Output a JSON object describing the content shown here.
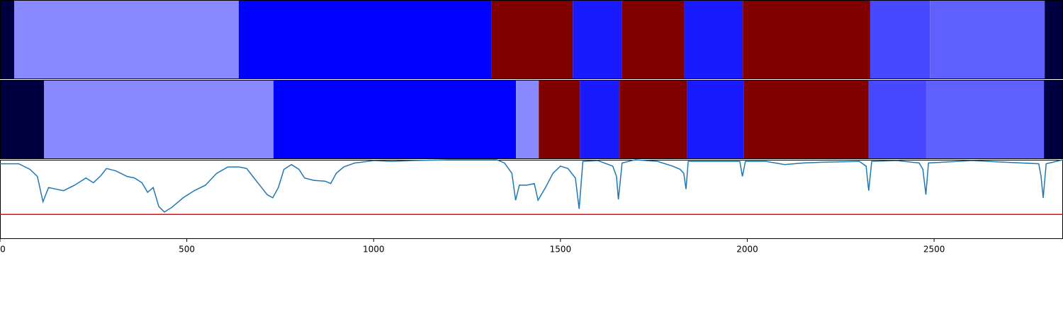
{
  "chart_data": [
    {
      "type": "segments",
      "edges": [
        0,
        38,
        639,
        1316,
        1533,
        1664,
        1832,
        1988,
        2329,
        2489,
        2796,
        2845
      ],
      "colors": [
        "#000040",
        "#8888ff",
        "#0000ff",
        "#800000",
        "#1a1aff",
        "#800000",
        "#1a1aff",
        "#800000",
        "#4848ff",
        "#6060ff",
        "#000040"
      ]
    },
    {
      "type": "segments",
      "edges": [
        0,
        118,
        732,
        1381,
        1442,
        1552,
        1658,
        1838,
        1990,
        2325,
        2479,
        2794,
        2845
      ],
      "colors": [
        "#000040",
        "#8888ff",
        "#0000ff",
        "#8888ff",
        "#800000",
        "#1a1aff",
        "#800000",
        "#1a1aff",
        "#800000",
        "#4848ff",
        "#6060ff",
        "#000040"
      ]
    },
    {
      "type": "line",
      "x": [
        0,
        50,
        80,
        100,
        115,
        130,
        170,
        200,
        230,
        250,
        270,
        285,
        310,
        340,
        360,
        380,
        395,
        410,
        425,
        440,
        460,
        490,
        520,
        550,
        580,
        610,
        640,
        660,
        680,
        700,
        715,
        730,
        745,
        760,
        780,
        800,
        815,
        840,
        870,
        885,
        900,
        920,
        950,
        1000,
        1050,
        1100,
        1200,
        1330,
        1350,
        1370,
        1380,
        1390,
        1410,
        1430,
        1440,
        1460,
        1480,
        1500,
        1520,
        1540,
        1550,
        1560,
        1600,
        1640,
        1650,
        1655,
        1665,
        1700,
        1760,
        1800,
        1820,
        1830,
        1836,
        1842,
        1980,
        1987,
        1995,
        2050,
        2100,
        2150,
        2200,
        2300,
        2318,
        2325,
        2333,
        2400,
        2460,
        2470,
        2478,
        2485,
        2600,
        2780,
        2786,
        2792,
        2800,
        2845
      ],
      "series": [
        {
          "color": "#1f77b4",
          "values": [
            0.95,
            0.95,
            0.88,
            0.79,
            0.47,
            0.65,
            0.61,
            0.68,
            0.77,
            0.71,
            0.8,
            0.89,
            0.86,
            0.79,
            0.77,
            0.71,
            0.59,
            0.65,
            0.41,
            0.34,
            0.4,
            0.52,
            0.61,
            0.68,
            0.83,
            0.91,
            0.91,
            0.89,
            0.77,
            0.65,
            0.56,
            0.52,
            0.65,
            0.88,
            0.94,
            0.88,
            0.77,
            0.74,
            0.73,
            0.7,
            0.83,
            0.91,
            0.96,
            0.99,
            0.98,
            0.99,
            1.0,
            1.0,
            0.96,
            0.83,
            0.49,
            0.68,
            0.68,
            0.7,
            0.49,
            0.65,
            0.83,
            0.92,
            0.89,
            0.77,
            0.38,
            0.98,
            0.99,
            0.92,
            0.79,
            0.5,
            0.96,
            1.0,
            0.98,
            0.92,
            0.88,
            0.83,
            0.63,
            0.98,
            0.98,
            0.79,
            0.98,
            0.98,
            0.94,
            0.96,
            0.97,
            0.98,
            0.92,
            0.61,
            0.98,
            0.99,
            0.96,
            0.88,
            0.56,
            0.96,
            0.99,
            0.95,
            0.8,
            0.52,
            0.95,
            1.0
          ]
        }
      ],
      "threshold": 0.31,
      "threshold_color": "#ff0000",
      "xlim": [
        0,
        2845
      ],
      "xticks": [
        0,
        500,
        1000,
        1500,
        2000,
        2500
      ],
      "ylim": [
        0,
        1
      ]
    }
  ]
}
